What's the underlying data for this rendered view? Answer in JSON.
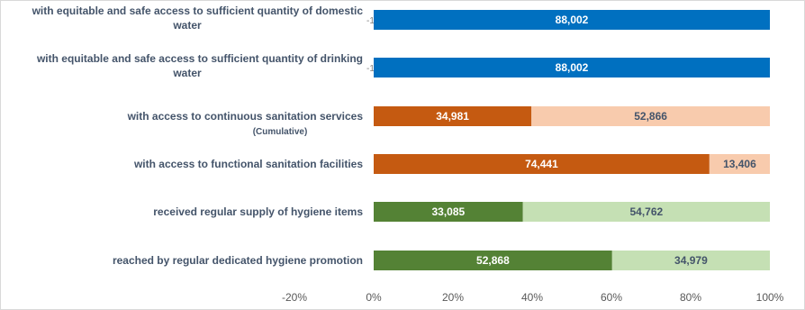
{
  "chart_data": {
    "type": "bar",
    "orientation": "horizontal",
    "stacked": true,
    "percent_stacked": true,
    "title": "",
    "xlabel": "",
    "ylabel": "",
    "xlim": [
      -20,
      100
    ],
    "tick_labels": [
      "-20%",
      "0%",
      "20%",
      "40%",
      "60%",
      "80%",
      "100%"
    ],
    "tick_values": [
      -20,
      0,
      20,
      40,
      60,
      80,
      100
    ],
    "grid": false,
    "legend": "none",
    "categories": [
      {
        "lines": [
          "with equitable and safe access to sufficient quantity of domestic",
          "water"
        ],
        "sub": "",
        "segments": [
          {
            "value": -133,
            "label": "-133",
            "color": "#0070c0",
            "text_color": "#7f7f7f"
          },
          {
            "value": 88002,
            "label": "88,002",
            "color": "#0070c0",
            "text_color": "#ffffff"
          }
        ]
      },
      {
        "lines": [
          "with equitable and safe access to sufficient quantity of drinking",
          "water"
        ],
        "sub": "",
        "segments": [
          {
            "value": -133,
            "label": "-133",
            "color": "#0070c0",
            "text_color": "#7f7f7f"
          },
          {
            "value": 88002,
            "label": "88,002",
            "color": "#0070c0",
            "text_color": "#ffffff"
          }
        ]
      },
      {
        "lines": [
          "with access to continuous sanitation services"
        ],
        "sub": "(Cumulative)",
        "segments": [
          {
            "value": 34981,
            "label": "34,981",
            "color": "#c55a11",
            "text_color": "#ffffff"
          },
          {
            "value": 52866,
            "label": "52,866",
            "color": "#f8cbad",
            "text_color": "#44546a"
          }
        ]
      },
      {
        "lines": [
          "with access to functional sanitation facilities"
        ],
        "sub": "",
        "segments": [
          {
            "value": 74441,
            "label": "74,441",
            "color": "#c55a11",
            "text_color": "#ffffff"
          },
          {
            "value": 13406,
            "label": "13,406",
            "color": "#f8cbad",
            "text_color": "#44546a"
          }
        ]
      },
      {
        "lines": [
          "received regular supply of hygiene items"
        ],
        "sub": "",
        "segments": [
          {
            "value": 33085,
            "label": "33,085",
            "color": "#548235",
            "text_color": "#ffffff"
          },
          {
            "value": 54762,
            "label": "54,762",
            "color": "#c5e0b4",
            "text_color": "#44546a"
          }
        ]
      },
      {
        "lines": [
          "reached by regular dedicated hygiene promotion"
        ],
        "sub": "",
        "segments": [
          {
            "value": 52868,
            "label": "52,868",
            "color": "#548235",
            "text_color": "#ffffff"
          },
          {
            "value": 34979,
            "label": "34,979",
            "color": "#c5e0b4",
            "text_color": "#44546a"
          }
        ]
      }
    ]
  }
}
